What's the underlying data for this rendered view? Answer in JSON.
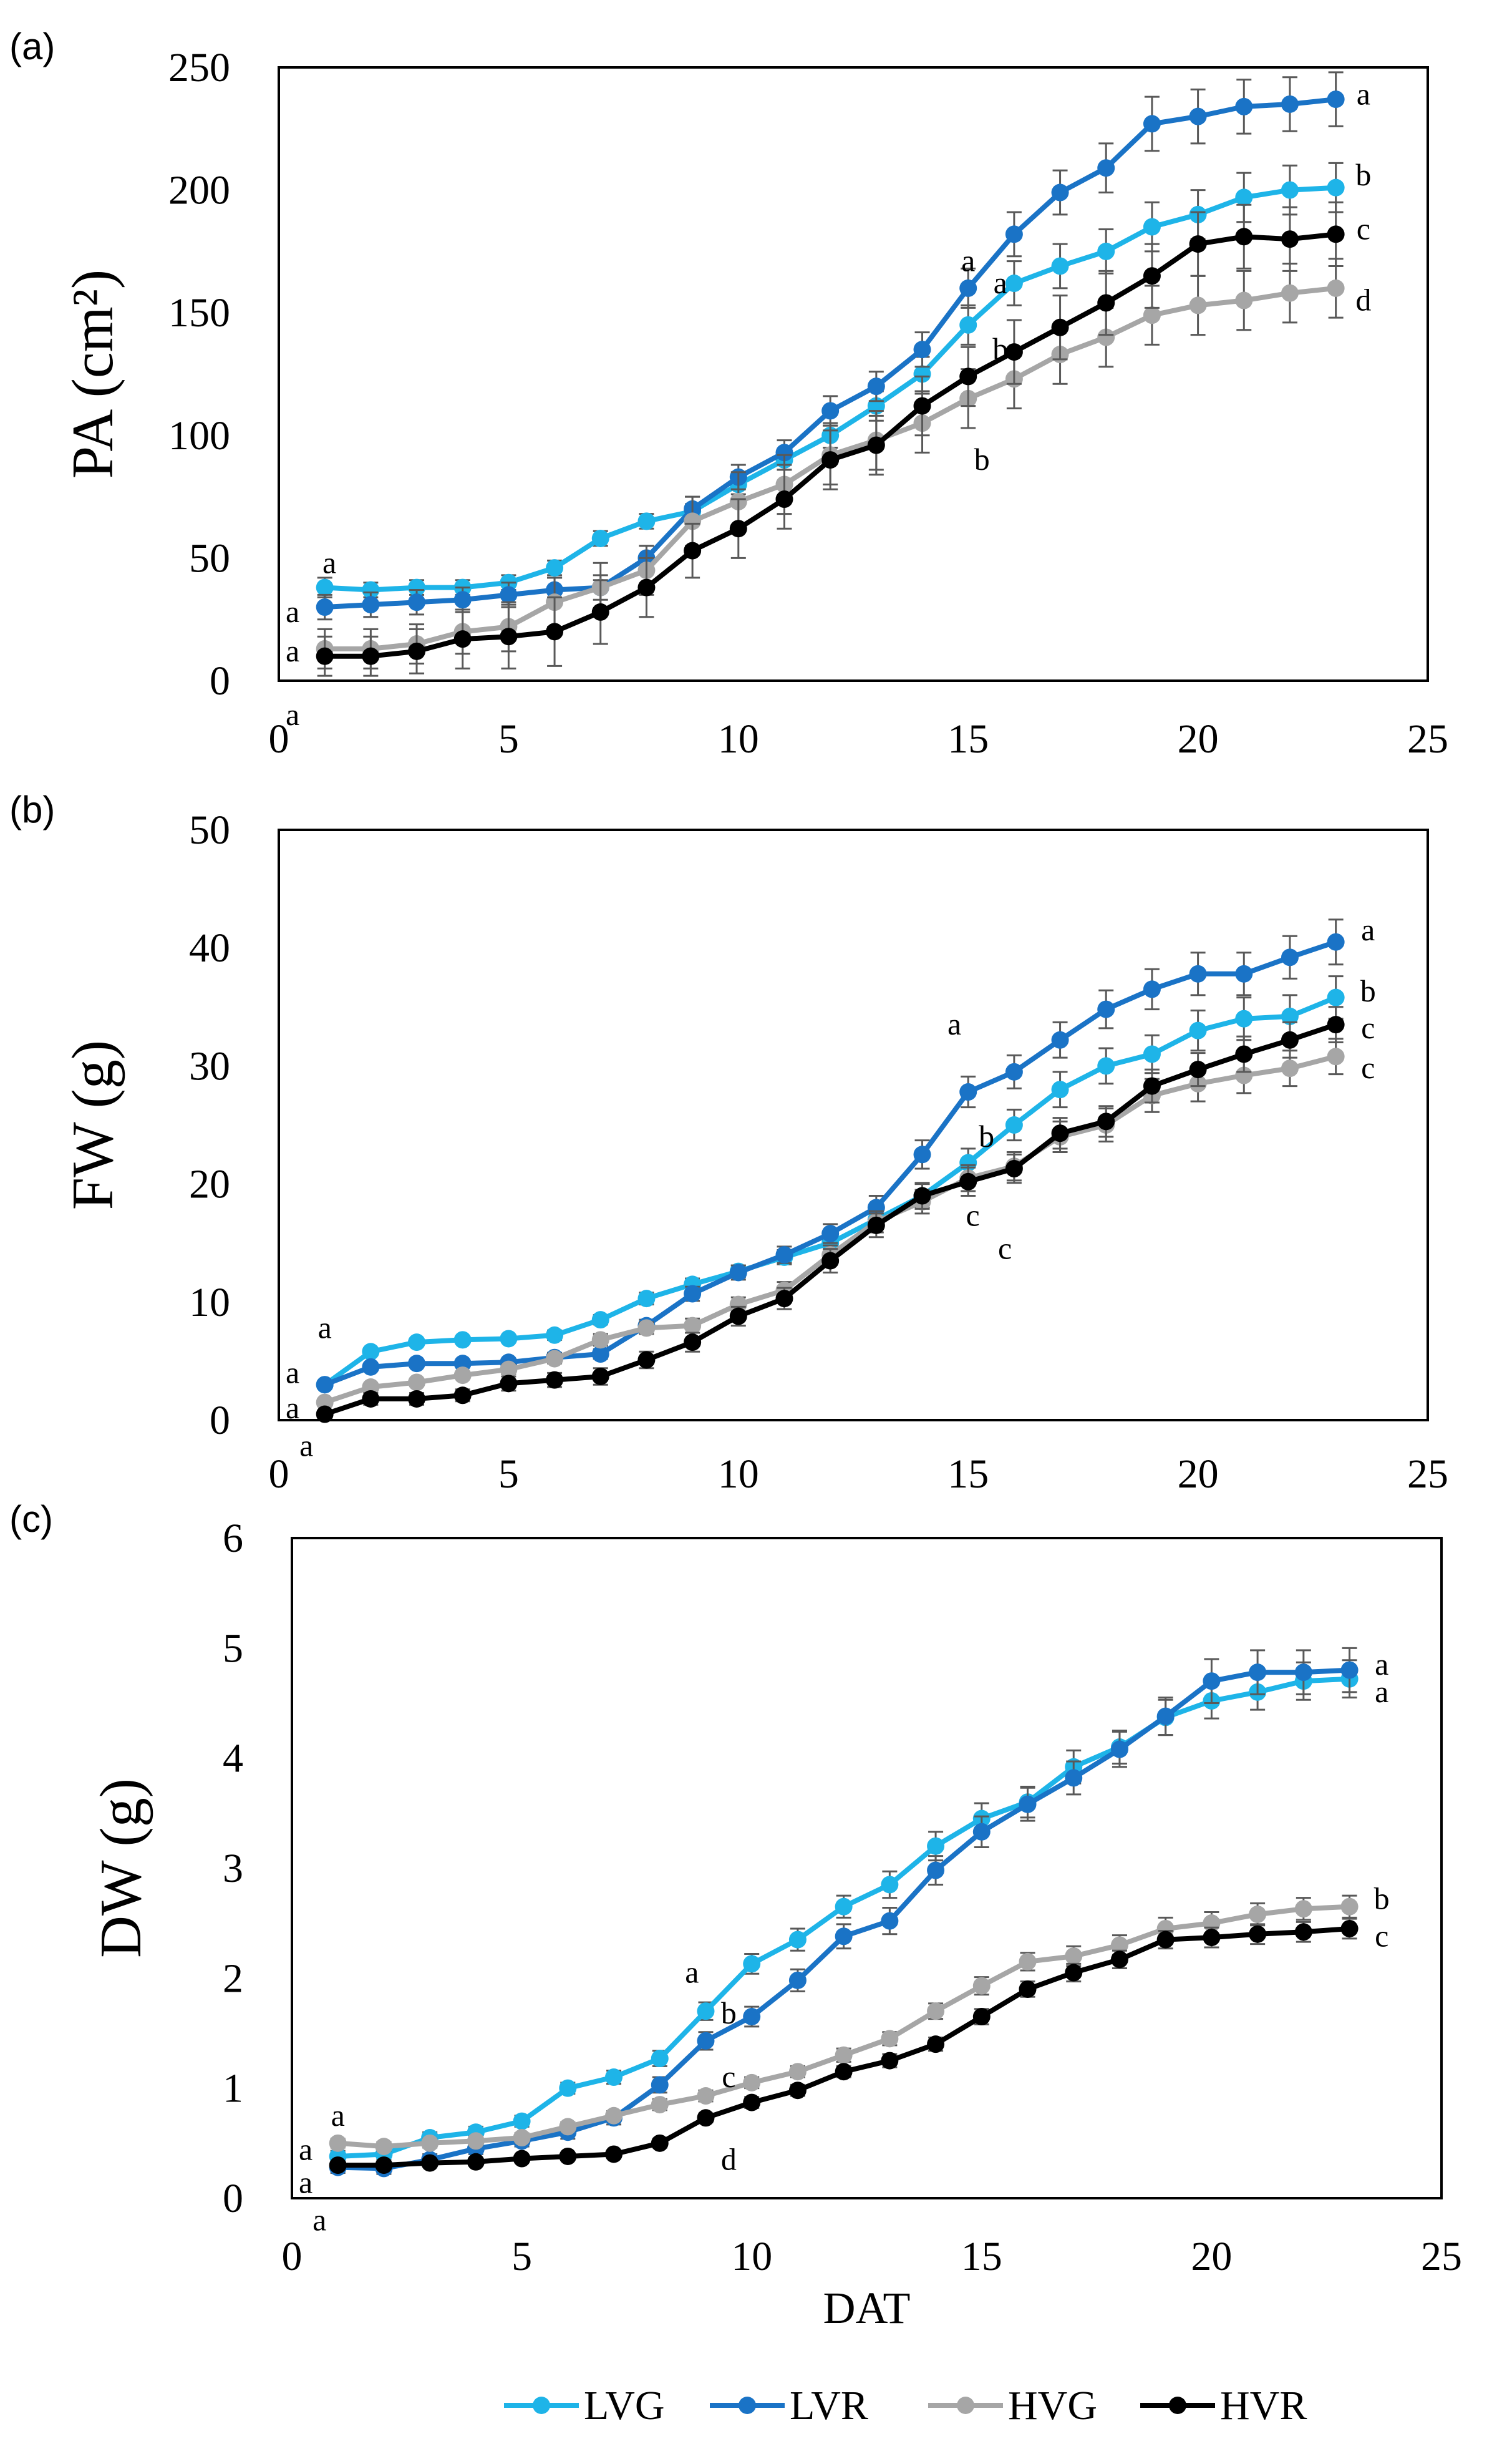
{
  "legend": [
    {
      "key": "LVG",
      "label": "LVG",
      "color": "#1EB4E8"
    },
    {
      "key": "LVR",
      "label": "LVR",
      "color": "#1A73C6"
    },
    {
      "key": "HVG",
      "label": "HVG",
      "color": "#A6A6A6"
    },
    {
      "key": "HVR",
      "label": "HVR",
      "color": "#000000"
    }
  ],
  "chart_data": [
    {
      "panel": "(a)",
      "type": "line",
      "ylabel": "PA (cm²)",
      "xlabel": "",
      "xlim": [
        0,
        25
      ],
      "ylim": [
        0,
        250
      ],
      "xticks": [
        0,
        5,
        10,
        15,
        20,
        25
      ],
      "yticks": [
        0,
        50,
        100,
        150,
        200,
        250
      ],
      "x": [
        1,
        2,
        3,
        4,
        5,
        6,
        7,
        8,
        9,
        10,
        11,
        12,
        13,
        14,
        15,
        16,
        17,
        18,
        19,
        20,
        21,
        22,
        23
      ],
      "series": [
        {
          "name": "LVG",
          "color": "#1EB4E8",
          "values": [
            38,
            37,
            38,
            38,
            40,
            46,
            58,
            65,
            69,
            80,
            90,
            100,
            112,
            125,
            145,
            162,
            169,
            175,
            185,
            190,
            197,
            200,
            201
          ],
          "err": [
            4,
            3,
            3,
            3,
            3,
            3,
            3,
            3,
            3,
            4,
            4,
            5,
            6,
            7,
            8,
            9,
            9,
            9,
            10,
            10,
            10,
            10,
            10
          ]
        },
        {
          "name": "LVR",
          "color": "#1A73C6",
          "values": [
            30,
            31,
            32,
            33,
            35,
            37,
            38,
            50,
            70,
            83,
            93,
            110,
            120,
            135,
            160,
            182,
            199,
            209,
            227,
            230,
            234,
            235,
            237
          ],
          "err": [
            5,
            5,
            5,
            5,
            5,
            5,
            5,
            5,
            5,
            5,
            5,
            6,
            6,
            7,
            8,
            9,
            9,
            10,
            11,
            11,
            11,
            11,
            11
          ]
        },
        {
          "name": "HVG",
          "color": "#A6A6A6",
          "values": [
            13,
            13,
            15,
            20,
            22,
            32,
            38,
            45,
            65,
            73,
            80,
            92,
            98,
            105,
            115,
            123,
            133,
            140,
            149,
            153,
            155,
            158,
            160
          ],
          "err": [
            8,
            8,
            8,
            9,
            10,
            10,
            10,
            10,
            10,
            12,
            12,
            12,
            12,
            12,
            12,
            12,
            12,
            12,
            12,
            12,
            12,
            12,
            12
          ]
        },
        {
          "name": "HVR",
          "color": "#000000",
          "values": [
            10,
            10,
            12,
            17,
            18,
            20,
            28,
            38,
            53,
            62,
            74,
            90,
            96,
            112,
            124,
            134,
            144,
            154,
            165,
            178,
            181,
            180,
            182
          ],
          "err": [
            8,
            8,
            9,
            12,
            13,
            14,
            13,
            12,
            11,
            12,
            12,
            12,
            12,
            12,
            12,
            13,
            13,
            13,
            13,
            13,
            13,
            13,
            13
          ]
        }
      ],
      "annotations": [
        {
          "text": "a",
          "x": 1.1,
          "y": 48
        },
        {
          "text": "a",
          "x": 0.3,
          "y": 28
        },
        {
          "text": "a",
          "x": 0.3,
          "y": 12
        },
        {
          "text": "a",
          "x": 0.3,
          "y": -14
        },
        {
          "text": "a",
          "x": 15.0,
          "y": 171
        },
        {
          "text": "a",
          "x": 15.7,
          "y": 162
        },
        {
          "text": "b",
          "x": 15.7,
          "y": 135
        },
        {
          "text": "b",
          "x": 15.3,
          "y": 90
        },
        {
          "text": "a",
          "x": 23.6,
          "y": 239
        },
        {
          "text": "b",
          "x": 23.6,
          "y": 206
        },
        {
          "text": "c",
          "x": 23.6,
          "y": 184
        },
        {
          "text": "d",
          "x": 23.6,
          "y": 155
        }
      ]
    },
    {
      "panel": "(b)",
      "type": "line",
      "ylabel": "FW (g)",
      "xlabel": "",
      "xlim": [
        0,
        25
      ],
      "ylim": [
        0,
        50
      ],
      "xticks": [
        0,
        5,
        10,
        15,
        20,
        25
      ],
      "yticks": [
        0,
        10,
        20,
        30,
        40,
        50
      ],
      "x": [
        1,
        2,
        3,
        4,
        5,
        6,
        7,
        8,
        9,
        10,
        11,
        12,
        13,
        14,
        15,
        16,
        17,
        18,
        19,
        20,
        21,
        22,
        23
      ],
      "series": [
        {
          "name": "LVG",
          "color": "#1EB4E8",
          "values": [
            3,
            5.8,
            6.6,
            6.8,
            6.9,
            7.2,
            8.5,
            10.3,
            11.5,
            12.6,
            13.8,
            15,
            17,
            19,
            21.8,
            25,
            28,
            30,
            31,
            33,
            34,
            34.2,
            35.8
          ],
          "err": [
            0.3,
            0.3,
            0.3,
            0.3,
            0.3,
            0.4,
            0.4,
            0.5,
            0.5,
            0.5,
            0.6,
            0.7,
            0.8,
            1,
            1.2,
            1.3,
            1.5,
            1.5,
            1.6,
            1.7,
            1.8,
            1.8,
            1.8
          ]
        },
        {
          "name": "LVR",
          "color": "#1A73C6",
          "values": [
            3,
            4.5,
            4.8,
            4.8,
            4.9,
            5.3,
            5.6,
            8,
            10.7,
            12.5,
            14,
            15.8,
            18,
            22.5,
            27.8,
            29.5,
            32.2,
            34.8,
            36.5,
            37.8,
            37.8,
            39.2,
            40.5
          ],
          "err": [
            0.3,
            0.3,
            0.3,
            0.3,
            0.3,
            0.4,
            0.4,
            0.5,
            0.6,
            0.6,
            0.7,
            0.8,
            1,
            1.2,
            1.3,
            1.4,
            1.5,
            1.6,
            1.7,
            1.8,
            1.8,
            1.8,
            1.9
          ]
        },
        {
          "name": "HVG",
          "color": "#A6A6A6",
          "values": [
            1.5,
            2.8,
            3.2,
            3.8,
            4.3,
            5.2,
            6.8,
            7.8,
            8,
            9.8,
            11,
            14,
            16.8,
            18.5,
            20.5,
            21.5,
            24,
            25,
            27.5,
            28.5,
            29.2,
            29.8,
            30.8
          ],
          "err": [
            0.3,
            0.3,
            0.3,
            0.3,
            0.4,
            0.4,
            0.5,
            0.5,
            0.6,
            0.6,
            0.7,
            0.8,
            0.9,
            1,
            1.1,
            1.2,
            1.3,
            1.4,
            1.4,
            1.5,
            1.5,
            1.5,
            1.5
          ]
        },
        {
          "name": "HVR",
          "color": "#000000",
          "values": [
            0.5,
            1.8,
            1.8,
            2.1,
            3.1,
            3.4,
            3.7,
            5.1,
            6.6,
            8.8,
            10.3,
            13.5,
            16.5,
            19,
            20.2,
            21.3,
            24.3,
            25.3,
            28.3,
            29.7,
            31,
            32.2,
            33.5
          ],
          "err": [
            0.3,
            0.5,
            0.5,
            0.5,
            0.6,
            0.6,
            0.7,
            0.7,
            0.8,
            0.8,
            0.9,
            1,
            1,
            1.1,
            1.2,
            1.2,
            1.3,
            1.3,
            1.4,
            1.4,
            1.5,
            1.5,
            1.5
          ]
        }
      ],
      "annotations": [
        {
          "text": "a",
          "x": 1.0,
          "y": 7.8
        },
        {
          "text": "a",
          "x": 0.3,
          "y": 4
        },
        {
          "text": "a",
          "x": 0.3,
          "y": 1
        },
        {
          "text": "a",
          "x": 0.6,
          "y": -2.2
        },
        {
          "text": "a",
          "x": 14.7,
          "y": 33.5
        },
        {
          "text": "b",
          "x": 15.4,
          "y": 24
        },
        {
          "text": "c",
          "x": 15.1,
          "y": 17.3
        },
        {
          "text": "c",
          "x": 15.8,
          "y": 14.5
        },
        {
          "text": "a",
          "x": 23.7,
          "y": 41.5
        },
        {
          "text": "b",
          "x": 23.7,
          "y": 36.3
        },
        {
          "text": "c",
          "x": 23.7,
          "y": 33.2
        },
        {
          "text": "c",
          "x": 23.7,
          "y": 29.8
        }
      ]
    },
    {
      "panel": "(c)",
      "type": "line",
      "ylabel": "DW (g)",
      "xlabel": "DAT",
      "xlim": [
        0,
        25
      ],
      "ylim": [
        0,
        6
      ],
      "xticks": [
        0,
        5,
        10,
        15,
        20,
        25
      ],
      "yticks": [
        0,
        1,
        2,
        3,
        4,
        5,
        6
      ],
      "x": [
        1,
        2,
        3,
        4,
        5,
        6,
        7,
        8,
        9,
        10,
        11,
        12,
        13,
        14,
        15,
        16,
        17,
        18,
        19,
        20,
        21,
        22,
        23
      ],
      "series": [
        {
          "name": "LVG",
          "color": "#1EB4E8",
          "values": [
            0.38,
            0.4,
            0.55,
            0.6,
            0.7,
            1,
            1.1,
            1.27,
            1.7,
            2.13,
            2.35,
            2.65,
            2.85,
            3.2,
            3.45,
            3.6,
            3.92,
            4.1,
            4.37,
            4.52,
            4.6,
            4.7,
            4.72
          ],
          "err": [
            0.05,
            0.05,
            0.05,
            0.05,
            0.05,
            0.05,
            0.06,
            0.07,
            0.08,
            0.09,
            0.1,
            0.1,
            0.12,
            0.13,
            0.14,
            0.14,
            0.15,
            0.15,
            0.16,
            0.16,
            0.16,
            0.17,
            0.17
          ]
        },
        {
          "name": "LVR",
          "color": "#1A73C6",
          "values": [
            0.28,
            0.27,
            0.35,
            0.45,
            0.52,
            0.6,
            0.73,
            1.03,
            1.43,
            1.65,
            1.98,
            2.38,
            2.52,
            2.98,
            3.33,
            3.58,
            3.82,
            4.08,
            4.38,
            4.7,
            4.78,
            4.78,
            4.8
          ],
          "err": [
            0.05,
            0.05,
            0.05,
            0.05,
            0.05,
            0.06,
            0.06,
            0.07,
            0.08,
            0.09,
            0.1,
            0.11,
            0.12,
            0.13,
            0.14,
            0.15,
            0.15,
            0.16,
            0.17,
            0.2,
            0.2,
            0.2,
            0.2
          ]
        },
        {
          "name": "HVG",
          "color": "#A6A6A6",
          "values": [
            0.5,
            0.47,
            0.5,
            0.52,
            0.55,
            0.65,
            0.75,
            0.85,
            0.93,
            1.05,
            1.15,
            1.3,
            1.45,
            1.7,
            1.93,
            2.15,
            2.2,
            2.3,
            2.45,
            2.5,
            2.58,
            2.63,
            2.65
          ],
          "err": [
            0.04,
            0.04,
            0.04,
            0.04,
            0.04,
            0.04,
            0.04,
            0.05,
            0.05,
            0.05,
            0.05,
            0.06,
            0.06,
            0.07,
            0.08,
            0.08,
            0.09,
            0.09,
            0.1,
            0.1,
            0.1,
            0.1,
            0.1
          ]
        },
        {
          "name": "HVR",
          "color": "#000000",
          "values": [
            0.3,
            0.3,
            0.32,
            0.33,
            0.36,
            0.38,
            0.4,
            0.5,
            0.73,
            0.87,
            0.98,
            1.15,
            1.25,
            1.4,
            1.65,
            1.9,
            2.05,
            2.17,
            2.35,
            2.37,
            2.4,
            2.42,
            2.45
          ],
          "err": [
            0.03,
            0.03,
            0.03,
            0.03,
            0.03,
            0.03,
            0.03,
            0.04,
            0.04,
            0.05,
            0.05,
            0.05,
            0.06,
            0.06,
            0.07,
            0.07,
            0.08,
            0.08,
            0.08,
            0.09,
            0.09,
            0.09,
            0.09
          ]
        }
      ],
      "annotations": [
        {
          "text": "a",
          "x": 1.0,
          "y": 0.75
        },
        {
          "text": "a",
          "x": 0.3,
          "y": 0.44
        },
        {
          "text": "a",
          "x": 0.3,
          "y": 0.14
        },
        {
          "text": "a",
          "x": 0.6,
          "y": -0.2
        },
        {
          "text": "a",
          "x": 8.7,
          "y": 2.05
        },
        {
          "text": "b",
          "x": 9.5,
          "y": 1.68
        },
        {
          "text": "c",
          "x": 9.5,
          "y": 1.1
        },
        {
          "text": "d",
          "x": 9.5,
          "y": 0.35
        },
        {
          "text": "a",
          "x": 23.7,
          "y": 4.85
        },
        {
          "text": "a",
          "x": 23.7,
          "y": 4.6
        },
        {
          "text": "b",
          "x": 23.7,
          "y": 2.72
        },
        {
          "text": "c",
          "x": 23.7,
          "y": 2.38
        }
      ]
    }
  ]
}
